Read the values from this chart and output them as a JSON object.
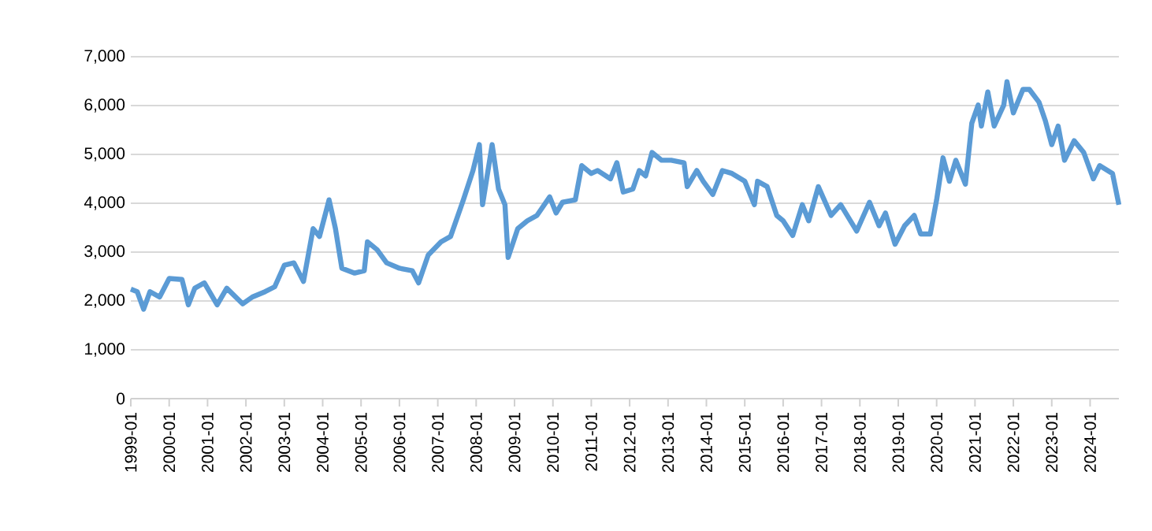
{
  "chart_data": {
    "type": "line",
    "x": [
      "1999-01",
      "1999-03",
      "1999-05",
      "1999-07",
      "1999-10",
      "2000-01",
      "2000-05",
      "2000-07",
      "2000-09",
      "2000-12",
      "2001-04",
      "2001-07",
      "2001-12",
      "2002-03",
      "2002-07",
      "2002-10",
      "2003-01",
      "2003-04",
      "2003-07",
      "2003-10",
      "2003-12",
      "2004-03",
      "2004-05",
      "2004-07",
      "2004-11",
      "2005-02",
      "2005-03",
      "2005-06",
      "2005-09",
      "2006-01",
      "2006-05",
      "2006-07",
      "2006-10",
      "2007-02",
      "2007-05",
      "2007-09",
      "2007-12",
      "2008-02",
      "2008-03",
      "2008-06",
      "2008-08",
      "2008-10",
      "2008-11",
      "2009-02",
      "2009-05",
      "2009-08",
      "2009-12",
      "2010-02",
      "2010-04",
      "2010-08",
      "2010-10",
      "2011-01",
      "2011-03",
      "2011-07",
      "2011-09",
      "2011-11",
      "2012-02",
      "2012-04",
      "2012-06",
      "2012-08",
      "2012-11",
      "2013-02",
      "2013-06",
      "2013-07",
      "2013-10",
      "2013-12",
      "2014-03",
      "2014-06",
      "2014-09",
      "2015-01",
      "2015-04",
      "2015-05",
      "2015-08",
      "2015-11",
      "2016-01",
      "2016-04",
      "2016-07",
      "2016-09",
      "2016-12",
      "2017-04",
      "2017-07",
      "2017-12",
      "2018-04",
      "2018-07",
      "2018-09",
      "2018-12",
      "2019-03",
      "2019-06",
      "2019-08",
      "2019-11",
      "2020-01",
      "2020-03",
      "2020-05",
      "2020-07",
      "2020-10",
      "2020-12",
      "2021-02",
      "2021-03",
      "2021-05",
      "2021-07",
      "2021-10",
      "2021-11",
      "2022-01",
      "2022-04",
      "2022-06",
      "2022-09",
      "2022-11",
      "2023-01",
      "2023-03",
      "2023-05",
      "2023-08",
      "2023-11",
      "2024-02",
      "2024-04",
      "2024-08",
      "2024-10"
    ],
    "series": [
      {
        "color": "#5b9bd5",
        "values": [
          2240,
          2190,
          1830,
          2190,
          2080,
          2460,
          2440,
          1920,
          2260,
          2370,
          1920,
          2260,
          1940,
          2080,
          2190,
          2290,
          2730,
          2780,
          2400,
          3480,
          3320,
          4070,
          3480,
          2670,
          2570,
          2620,
          3210,
          3050,
          2780,
          2670,
          2620,
          2370,
          2940,
          3210,
          3320,
          4070,
          4670,
          5200,
          3970,
          5200,
          4290,
          3970,
          2890,
          3480,
          3640,
          3750,
          4130,
          3800,
          4020,
          4070,
          4770,
          4610,
          4670,
          4500,
          4830,
          4230,
          4290,
          4670,
          4560,
          5040,
          4880,
          4880,
          4830,
          4340,
          4670,
          4450,
          4180,
          4670,
          4610,
          4450,
          3970,
          4450,
          4340,
          3750,
          3640,
          3340,
          3970,
          3640,
          4340,
          3750,
          3970,
          3430,
          4020,
          3540,
          3800,
          3160,
          3540,
          3750,
          3370,
          3370,
          4070,
          4930,
          4450,
          4880,
          4390,
          5640,
          6010,
          5580,
          6280,
          5580,
          6010,
          6490,
          5850,
          6330,
          6330,
          6070,
          5690,
          5200,
          5580,
          4880,
          5280,
          5040,
          4500,
          4770,
          4610,
          3970
        ]
      }
    ],
    "xlim": [
      "1999-01",
      "2024-10"
    ],
    "xticks": [
      "1999-01",
      "2000-01",
      "2001-01",
      "2002-01",
      "2003-01",
      "2004-01",
      "2005-01",
      "2006-01",
      "2007-01",
      "2008-01",
      "2009-01",
      "2010-01",
      "2011-01",
      "2012-01",
      "2013-01",
      "2014-01",
      "2015-01",
      "2016-01",
      "2017-01",
      "2018-01",
      "2019-01",
      "2020-01",
      "2021-01",
      "2022-01",
      "2023-01",
      "2024-01"
    ],
    "ylim": [
      0,
      7000
    ],
    "yticks": [
      0,
      {
        "value": 1000,
        "label": "1,000"
      },
      {
        "value": 2000,
        "label": "2,000"
      },
      {
        "value": 3000,
        "label": "3,000"
      },
      {
        "value": 4000,
        "label": "4,000"
      },
      {
        "value": 5000,
        "label": "5,000"
      },
      {
        "value": 6000,
        "label": "6,000"
      },
      {
        "value": 7000,
        "label": "7,000"
      }
    ],
    "grid": "y",
    "marker": "none",
    "line_style": "solid"
  }
}
